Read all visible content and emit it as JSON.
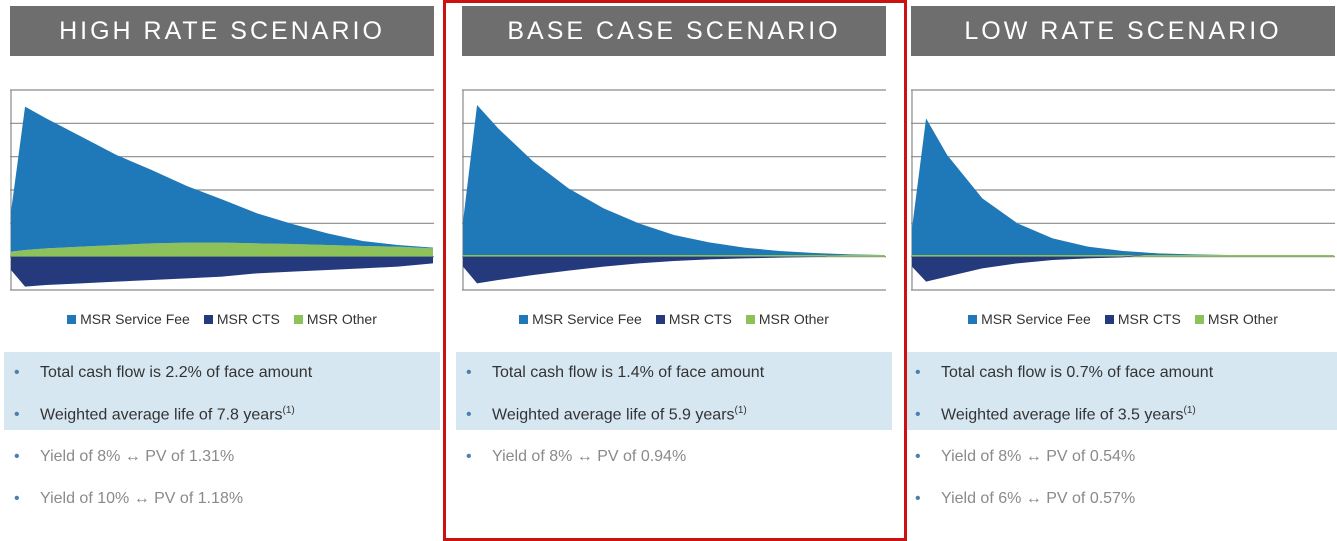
{
  "chart_data": [
    {
      "type": "area",
      "title": "HIGH RATE SCENARIO",
      "x": [
        0,
        0.4,
        1,
        2,
        3,
        4,
        5,
        6,
        7,
        8,
        9,
        10,
        11,
        12
      ],
      "xlim": [
        0,
        12
      ],
      "ylim": [
        -1,
        5
      ],
      "yticks": [
        -1,
        0,
        1,
        2,
        3,
        4,
        5
      ],
      "grid": true,
      "series": [
        {
          "name": "MSR Service Fee",
          "color": "#1f78b8",
          "values": [
            1.2,
            4.3,
            3.9,
            3.3,
            2.7,
            2.2,
            1.7,
            1.3,
            0.9,
            0.6,
            0.35,
            0.15,
            0.05,
            0.02
          ]
        },
        {
          "name": "MSR CTS",
          "color": "#243a7c",
          "values": [
            -0.4,
            -0.9,
            -0.85,
            -0.8,
            -0.75,
            -0.7,
            -0.65,
            -0.6,
            -0.5,
            -0.45,
            -0.4,
            -0.35,
            -0.3,
            -0.2
          ]
        },
        {
          "name": "MSR Other",
          "color": "#8dc15a",
          "values": [
            0.15,
            0.2,
            0.25,
            0.3,
            0.35,
            0.4,
            0.42,
            0.42,
            0.4,
            0.38,
            0.35,
            0.32,
            0.3,
            0.25
          ]
        }
      ],
      "highlights": [
        "Total cash flow is 2.2% of face amount",
        {
          "text": "Weighted average life of 7.8 years",
          "sup": "(1)"
        }
      ],
      "notes": [
        "Yield of 8% ↔ PV of 1.31%",
        "Yield of 10% ↔ PV of 1.18%"
      ]
    },
    {
      "type": "area",
      "title": "BASE CASE SCENARIO",
      "x": [
        0,
        0.4,
        1,
        2,
        3,
        4,
        5,
        6,
        7,
        8,
        9,
        10,
        11,
        12
      ],
      "xlim": [
        0,
        12
      ],
      "ylim": [
        -1,
        5
      ],
      "yticks": [
        -1,
        0,
        1,
        2,
        3,
        4,
        5
      ],
      "grid": true,
      "series": [
        {
          "name": "MSR Service Fee",
          "color": "#1f78b8",
          "values": [
            1,
            4.5,
            3.8,
            2.8,
            2.0,
            1.4,
            0.95,
            0.6,
            0.38,
            0.22,
            0.12,
            0.06,
            0.02,
            0
          ]
        },
        {
          "name": "MSR CTS",
          "color": "#243a7c",
          "values": [
            -0.3,
            -0.8,
            -0.7,
            -0.55,
            -0.42,
            -0.3,
            -0.2,
            -0.13,
            -0.08,
            -0.05,
            -0.03,
            -0.01,
            0,
            0
          ]
        },
        {
          "name": "MSR Other",
          "color": "#8dc15a",
          "values": [
            0.05,
            0.05,
            0.05,
            0.05,
            0.05,
            0.05,
            0.05,
            0.05,
            0.05,
            0.05,
            0.05,
            0.05,
            0.05,
            0.05
          ]
        }
      ],
      "highlights": [
        "Total cash flow is 1.4% of face amount",
        {
          "text": "Weighted average life of 5.9 years",
          "sup": "(1)"
        }
      ],
      "notes": [
        "Yield of 8% ↔ PV of 0.94%"
      ]
    },
    {
      "type": "area",
      "title": "LOW RATE SCENARIO",
      "x": [
        0,
        0.4,
        1,
        2,
        3,
        4,
        5,
        6,
        7,
        8,
        9,
        10,
        11,
        12
      ],
      "xlim": [
        0,
        12
      ],
      "ylim": [
        -1,
        5
      ],
      "yticks": [
        -1,
        0,
        1,
        2,
        3,
        4,
        5
      ],
      "grid": true,
      "series": [
        {
          "name": "MSR Service Fee",
          "color": "#1f78b8",
          "values": [
            0.8,
            4.1,
            3.0,
            1.7,
            0.95,
            0.5,
            0.25,
            0.12,
            0.05,
            0.02,
            0,
            0,
            0,
            0
          ]
        },
        {
          "name": "MSR CTS",
          "color": "#243a7c",
          "values": [
            -0.3,
            -0.75,
            -0.6,
            -0.35,
            -0.2,
            -0.1,
            -0.05,
            -0.02,
            0,
            0,
            0,
            0,
            0,
            0
          ]
        },
        {
          "name": "MSR Other",
          "color": "#8dc15a",
          "values": [
            0.05,
            0.05,
            0.05,
            0.05,
            0.05,
            0.05,
            0.05,
            0.05,
            0.05,
            0.05,
            0.05,
            0.05,
            0.05,
            0.05
          ]
        }
      ],
      "highlights": [
        "Total cash flow is 0.7% of face amount",
        {
          "text": "Weighted average life of 3.5 years",
          "sup": "(1)"
        }
      ],
      "notes": [
        "Yield of 8% ↔ PV of 0.54%",
        "Yield of 6% ↔ PV of 0.57%"
      ]
    }
  ]
}
